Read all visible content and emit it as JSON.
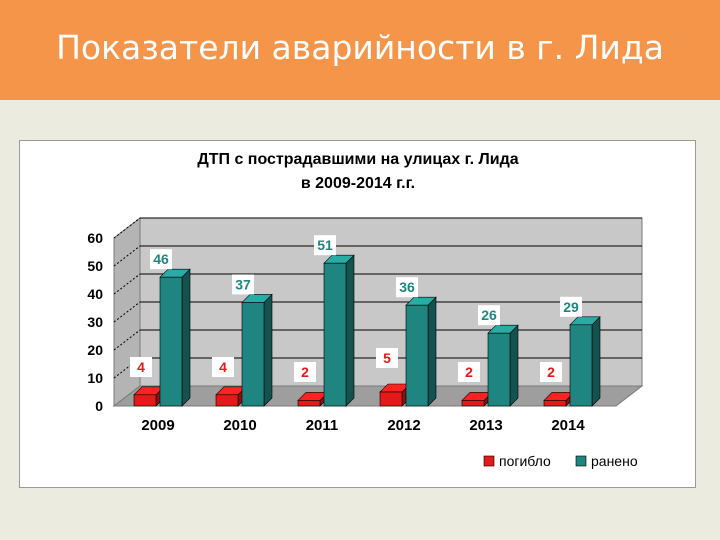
{
  "slide": {
    "title": "Показатели аварийности в г. Лида"
  },
  "colors": {
    "header": "#f5954a",
    "background": "#ecebe0",
    "killed": "#e41a1a",
    "injured": "#1f8580",
    "plot_wall": "#c8c8c8"
  },
  "chart_data": {
    "type": "bar",
    "title": "ДТП с пострадавшими на улицах г. Лида",
    "subtitle": "в 2009-2014 г.г.",
    "categories": [
      "2009",
      "2010",
      "2011",
      "2012",
      "2013",
      "2014"
    ],
    "series": [
      {
        "name": "погибло",
        "values": [
          4,
          4,
          2,
          5,
          2,
          2
        ],
        "color": "#e41a1a"
      },
      {
        "name": "ранено",
        "values": [
          46,
          37,
          51,
          36,
          26,
          29
        ],
        "color": "#1f8580"
      }
    ],
    "ylim": [
      0,
      60
    ],
    "yticks": [
      0,
      10,
      20,
      30,
      40,
      50,
      60
    ],
    "grid": true,
    "three_d": true,
    "legend_position": "bottom-right"
  }
}
